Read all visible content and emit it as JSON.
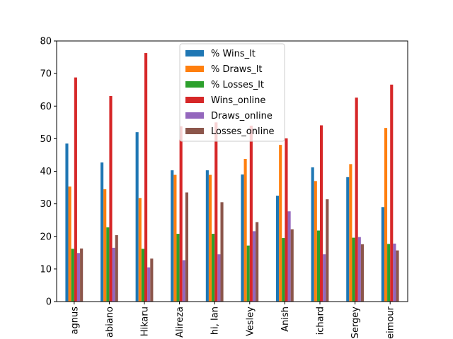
{
  "chart_data": {
    "type": "bar",
    "categories": [
      "agnus",
      "abiano",
      "Hikaru",
      "Alireza",
      "hi, Ian",
      "Vesley",
      "Anish",
      "ichard",
      "Sergey",
      "eimour"
    ],
    "series": [
      {
        "name": "% Wins_lt",
        "color": "#1f77b4",
        "values": [
          48.5,
          42.7,
          52.0,
          40.3,
          40.3,
          39.0,
          32.5,
          41.2,
          38.2,
          29.0
        ]
      },
      {
        "name": "% Draws_lt",
        "color": "#ff7f0e",
        "values": [
          35.3,
          34.5,
          31.8,
          38.9,
          38.9,
          43.8,
          48.1,
          37.0,
          42.2,
          53.3
        ]
      },
      {
        "name": "% Losses_lt",
        "color": "#2ca02c",
        "values": [
          16.2,
          22.8,
          16.2,
          20.8,
          20.8,
          17.2,
          19.5,
          21.8,
          19.6,
          17.7
        ]
      },
      {
        "name": "Wins_online",
        "color": "#d62728",
        "values": [
          68.8,
          63.1,
          76.3,
          53.8,
          55.0,
          54.0,
          50.1,
          54.1,
          62.6,
          66.6
        ]
      },
      {
        "name": "Draws_online",
        "color": "#9467bd",
        "values": [
          14.9,
          16.5,
          10.5,
          12.7,
          14.5,
          21.6,
          27.7,
          14.5,
          19.8,
          17.8
        ]
      },
      {
        "name": "Losses_online",
        "color": "#8c564b",
        "values": [
          16.3,
          20.4,
          13.2,
          33.5,
          30.5,
          24.4,
          22.2,
          31.4,
          17.6,
          15.7
        ]
      }
    ],
    "ylim": [
      0,
      80
    ],
    "yticks": [
      "0",
      "10",
      "20",
      "30",
      "40",
      "50",
      "60",
      "70",
      "80"
    ],
    "legend_position": "upper-center",
    "grid": false,
    "xlabel": "",
    "ylabel": "",
    "title": ""
  }
}
